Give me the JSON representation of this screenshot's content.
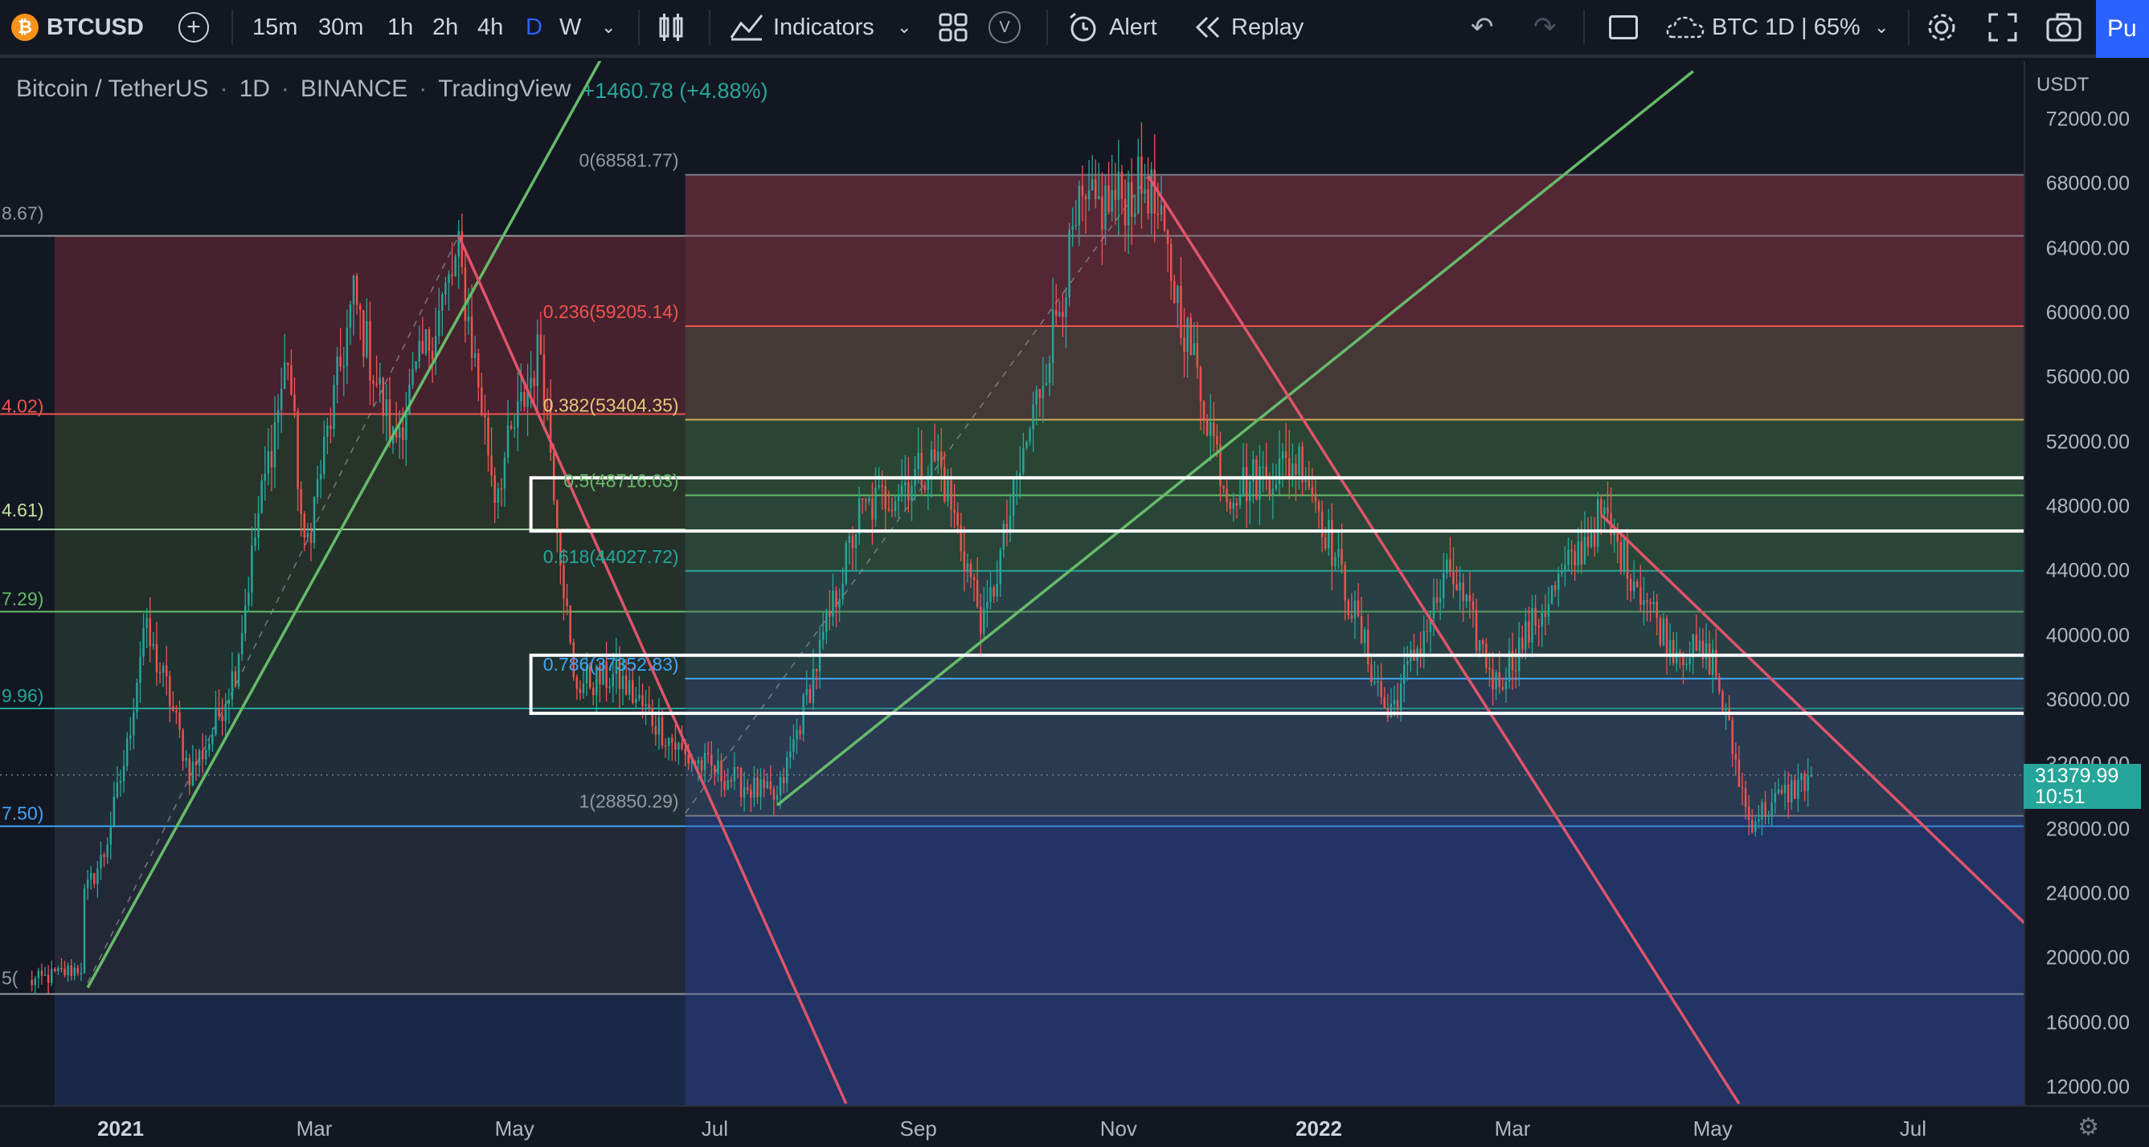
{
  "toolbar": {
    "symbol": "BTCUSD",
    "intervals": [
      "15m",
      "30m",
      "1h",
      "2h",
      "4h",
      "D",
      "W"
    ],
    "active_interval": "D",
    "indicators_label": "Indicators",
    "alert_label": "Alert",
    "replay_label": "Replay",
    "layout_label": "BTC 1D | 65%",
    "publish_label": "Pu"
  },
  "legend": {
    "name": "Bitcoin / TetherUS",
    "interval": "1D",
    "exchange": "BINANCE",
    "source": "TradingView",
    "change": "+1460.78 (+4.88%)"
  },
  "price_axis": {
    "currency": "USDT",
    "last_price": "31379.99",
    "countdown": "10:51"
  },
  "colors": {
    "background": "#131722",
    "up": "#26a69a",
    "down": "#ef5350",
    "accent": "#2962ff",
    "trend_green": "#66bb6a",
    "trend_red": "#e0546a"
  },
  "fib_right": [
    {
      "label": "0(68581.77)"
    },
    {
      "label": "0.236(59205.14)"
    },
    {
      "label": "0.382(53404.35)"
    },
    {
      "label": "0.5(48716.03)"
    },
    {
      "label": "0.618(44027.72)"
    },
    {
      "label": "0.786(37352.83)"
    },
    {
      "label": "1(28850.29)"
    }
  ],
  "fib_left_cut": [
    "8.67)",
    "4.02)",
    "4.61)",
    "7.29)",
    "9.96)",
    "7.50)",
    "5("
  ],
  "chart_data": {
    "type": "candlestick",
    "title": "Bitcoin / TetherUS · 1D · BINANCE",
    "xlabel": "",
    "ylabel": "USDT",
    "ylim": [
      11000,
      75000
    ],
    "y_ticks": [
      72000,
      68000,
      64000,
      60000,
      56000,
      52000,
      48000,
      44000,
      40000,
      36000,
      32000,
      28000,
      24000,
      20000,
      16000,
      12000
    ],
    "x_ticks": [
      "2021",
      "Mar",
      "May",
      "Jul",
      "Sep",
      "Nov",
      "2022",
      "Mar",
      "May",
      "Jul"
    ],
    "x_ticks_bold": [
      "2021",
      "2022"
    ],
    "close_path": [
      {
        "date": "2020-12-20",
        "close": 23500
      },
      {
        "date": "2020-12-27",
        "close": 26500
      },
      {
        "date": "2021-01-03",
        "close": 33000
      },
      {
        "date": "2021-01-08",
        "close": 40500
      },
      {
        "date": "2021-01-15",
        "close": 36800
      },
      {
        "date": "2021-01-22",
        "close": 31500
      },
      {
        "date": "2021-01-28",
        "close": 33500
      },
      {
        "date": "2021-02-05",
        "close": 38000
      },
      {
        "date": "2021-02-12",
        "close": 47500
      },
      {
        "date": "2021-02-21",
        "close": 57500
      },
      {
        "date": "2021-02-26",
        "close": 45000
      },
      {
        "date": "2021-03-13",
        "close": 61000
      },
      {
        "date": "2021-03-25",
        "close": 52000
      },
      {
        "date": "2021-04-14",
        "close": 63500
      },
      {
        "date": "2021-04-25",
        "close": 49000
      },
      {
        "date": "2021-05-09",
        "close": 58000
      },
      {
        "date": "2021-05-19",
        "close": 37000
      },
      {
        "date": "2021-06-01",
        "close": 37500
      },
      {
        "date": "2021-06-22",
        "close": 32500
      },
      {
        "date": "2021-07-20",
        "close": 29800
      },
      {
        "date": "2021-08-14",
        "close": 47500
      },
      {
        "date": "2021-09-07",
        "close": 51000
      },
      {
        "date": "2021-09-21",
        "close": 40500
      },
      {
        "date": "2021-10-20",
        "close": 66000
      },
      {
        "date": "2021-11-10",
        "close": 68000
      },
      {
        "date": "2021-12-04",
        "close": 49000
      },
      {
        "date": "2021-12-27",
        "close": 51000
      },
      {
        "date": "2022-01-22",
        "close": 35000
      },
      {
        "date": "2022-02-10",
        "close": 44000
      },
      {
        "date": "2022-02-24",
        "close": 37000
      },
      {
        "date": "2022-03-28",
        "close": 47500
      },
      {
        "date": "2022-04-18",
        "close": 39500
      },
      {
        "date": "2022-05-01",
        "close": 38500
      },
      {
        "date": "2022-05-12",
        "close": 28500
      },
      {
        "date": "2022-05-31",
        "close": 31379.99
      }
    ],
    "fib_retracement": {
      "start": {
        "date": "2021-06-22",
        "price": 28850.29
      },
      "end": {
        "date": "2021-11-10",
        "price": 68581.77
      },
      "levels": [
        {
          "ratio": 0,
          "price": 68581.77
        },
        {
          "ratio": 0.236,
          "price": 59205.14
        },
        {
          "ratio": 0.382,
          "price": 53404.35
        },
        {
          "ratio": 0.5,
          "price": 48716.03
        },
        {
          "ratio": 0.618,
          "price": 44027.72
        },
        {
          "ratio": 0.786,
          "price": 37352.83
        },
        {
          "ratio": 1,
          "price": 28850.29
        }
      ]
    },
    "fib_retracement_left": {
      "start": {
        "date": "2020-12-18",
        "price": 17800
      },
      "end": {
        "date": "2021-04-14",
        "price": 64800
      },
      "level_prices": [
        64800,
        53750,
        46600,
        41500,
        35500,
        28200,
        17800
      ]
    },
    "zones": [
      {
        "low": 46500,
        "high": 49800
      },
      {
        "low": 35200,
        "high": 38800
      }
    ],
    "trendlines": [
      {
        "color": "green",
        "from": {
          "date": "2020-12-22",
          "price": 18200
        },
        "to": {
          "date": "2021-05-28",
          "price": 76000
        }
      },
      {
        "color": "green",
        "from": {
          "date": "2021-07-20",
          "price": 29500
        },
        "to": {
          "date": "2022-04-25",
          "price": 75000
        }
      },
      {
        "color": "red",
        "from": {
          "date": "2021-04-14",
          "price": 64800
        },
        "to": {
          "date": "2021-08-10",
          "price": 11000
        }
      },
      {
        "color": "red",
        "from": {
          "date": "2021-11-10",
          "price": 68500
        },
        "to": {
          "date": "2022-05-09",
          "price": 11000
        }
      },
      {
        "color": "red",
        "from": {
          "date": "2022-03-28",
          "price": 47500
        },
        "to": {
          "date": "2022-08-10",
          "price": 21000
        }
      }
    ],
    "dashed_lines": [
      {
        "from": {
          "date": "2020-12-22",
          "price": 18500
        },
        "to": {
          "date": "2021-04-14",
          "price": 64800
        }
      },
      {
        "from": {
          "date": "2021-06-22",
          "price": 29000
        },
        "to": {
          "date": "2021-11-10",
          "price": 68500
        }
      }
    ]
  }
}
